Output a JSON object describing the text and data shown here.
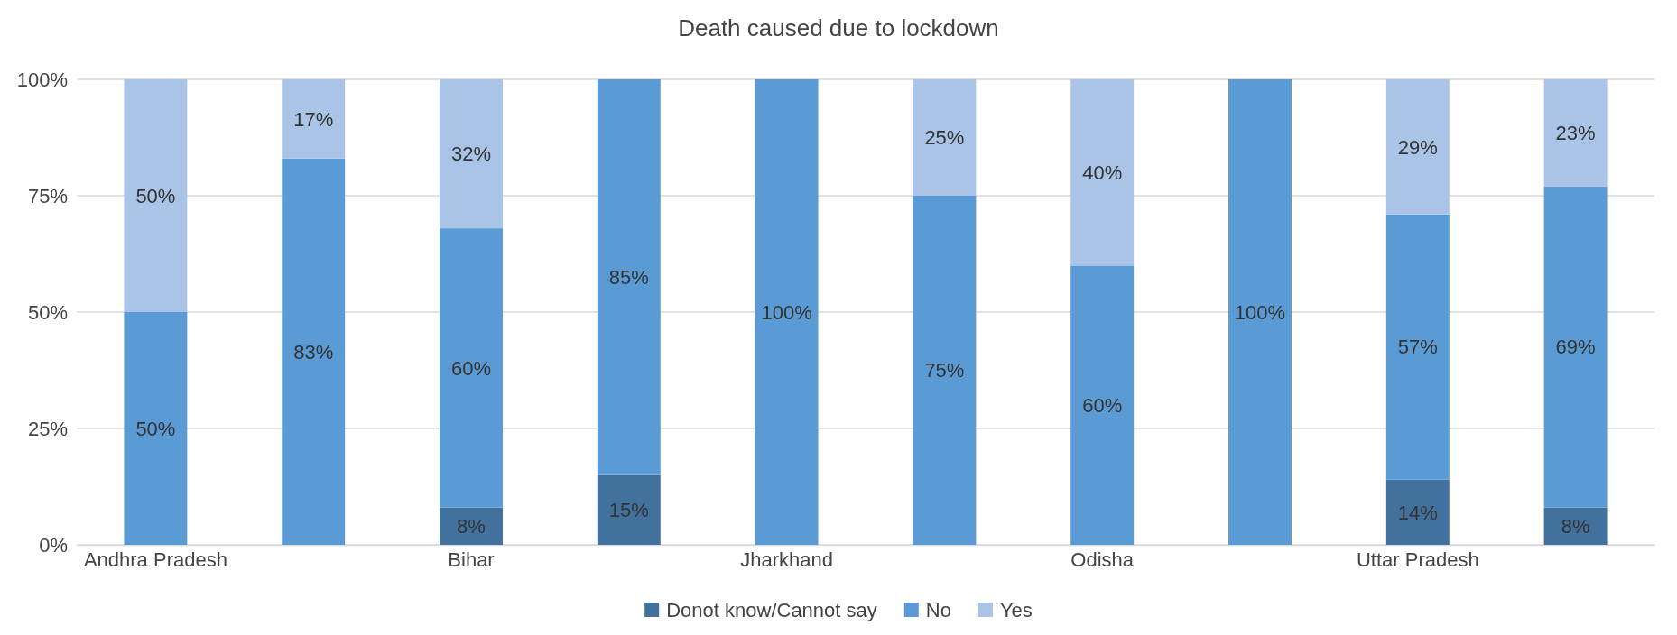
{
  "chart_data": {
    "type": "bar",
    "title": "Death caused due to lockdown",
    "stacked": true,
    "categories": [
      "Andhra Pradesh",
      null,
      "Bihar",
      null,
      "Jharkhand",
      null,
      "Odisha",
      null,
      "Uttar Pradesh",
      null
    ],
    "series": [
      {
        "name": "Donot know/Cannot say",
        "color": "#41719c",
        "values": [
          null,
          null,
          8,
          15,
          null,
          null,
          null,
          null,
          14,
          8
        ],
        "value_labels": [
          null,
          null,
          "8%",
          "15%",
          null,
          null,
          null,
          null,
          "14%",
          "8%"
        ]
      },
      {
        "name": "No",
        "color": "#5b9bd5",
        "values": [
          50,
          83,
          60,
          85,
          100,
          75,
          60,
          100,
          57,
          69
        ],
        "value_labels": [
          "50%",
          "83%",
          "60%",
          "85%",
          "100%",
          "75%",
          "60%",
          "100%",
          "57%",
          "69%"
        ]
      },
      {
        "name": "Yes",
        "color": "#a9c4e6",
        "values": [
          50,
          17,
          32,
          null,
          null,
          25,
          40,
          null,
          29,
          23
        ],
        "value_labels": [
          "50%",
          "17%",
          "32%",
          null,
          null,
          "25%",
          "40%",
          null,
          "29%",
          "23%"
        ]
      }
    ],
    "ylim": [
      0,
      100
    ],
    "yticks": [
      {
        "value": 0,
        "label": "0%"
      },
      {
        "value": 25,
        "label": "25%"
      },
      {
        "value": 50,
        "label": "50%"
      },
      {
        "value": 75,
        "label": "75%"
      },
      {
        "value": 100,
        "label": "100%"
      }
    ],
    "grid": "y",
    "legend": "bottom"
  }
}
